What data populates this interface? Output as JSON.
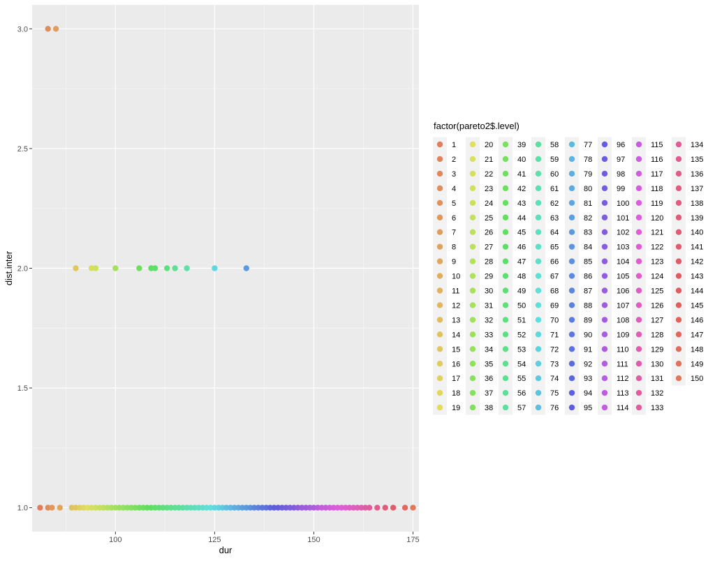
{
  "chart_data": {
    "type": "scatter",
    "xlabel": "dur",
    "ylabel": "dist.inter",
    "xlim": [
      79,
      176.5
    ],
    "ylim": [
      0.9,
      3.1
    ],
    "x_ticks": [
      100,
      125,
      150,
      175
    ],
    "x_tick_labels": [
      "100",
      "125",
      "150",
      "175"
    ],
    "y_ticks": [
      1.0,
      1.5,
      2.0,
      2.5,
      3.0
    ],
    "y_tick_labels": [
      "1.0",
      "1.5",
      "2.0",
      "2.5",
      "3.0"
    ],
    "grid": true,
    "panel_background": "#ebebeb",
    "legend": {
      "title": "factor(pareto2$.level)",
      "placement": "right",
      "levels_from": 1,
      "levels_to": 150,
      "columns": 8,
      "rows": 19
    },
    "color_scale": "hue palette by level (1 red-orange → 150 red-pink)",
    "series": [
      {
        "y": 3.0,
        "x": [
          83,
          85
        ]
      },
      {
        "y": 2.0,
        "x": [
          90,
          94,
          95,
          100,
          106,
          109,
          110,
          113,
          115,
          118,
          125,
          133
        ]
      },
      {
        "y": 1.0,
        "x": [
          81,
          83,
          84,
          86,
          89,
          90,
          91,
          92,
          93,
          94,
          95,
          96,
          97,
          98,
          99,
          100,
          101,
          102,
          103,
          104,
          105,
          106,
          107,
          108,
          109,
          110,
          111,
          112,
          113,
          114,
          115,
          116,
          117,
          118,
          119,
          120,
          121,
          122,
          123,
          124,
          125,
          126,
          127,
          128,
          129,
          130,
          131,
          132,
          133,
          134,
          135,
          136,
          137,
          138,
          139,
          140,
          141,
          142,
          143,
          144,
          145,
          146,
          147,
          148,
          149,
          150,
          151,
          152,
          153,
          154,
          155,
          156,
          157,
          158,
          159,
          160,
          161,
          162,
          163,
          164,
          166,
          168,
          170,
          173,
          175
        ]
      }
    ]
  }
}
